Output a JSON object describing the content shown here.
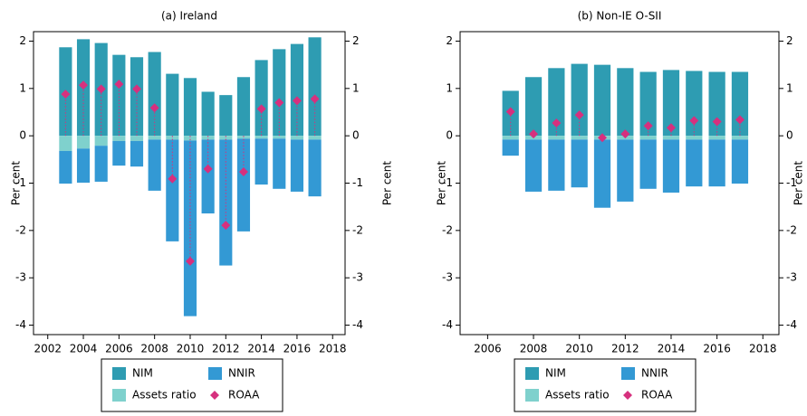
{
  "chart_data": [
    {
      "type": "bar",
      "title": "(a) Ireland",
      "ylabel": "Per cent",
      "y2label": "Per cent",
      "x": [
        2003,
        2004,
        2005,
        2006,
        2007,
        2008,
        2009,
        2010,
        2011,
        2012,
        2013,
        2014,
        2015,
        2016,
        2017
      ],
      "xlim": [
        2001.2,
        2018.7
      ],
      "xticks": [
        2002,
        2004,
        2006,
        2008,
        2010,
        2012,
        2014,
        2016,
        2018
      ],
      "ylim": [
        -4.2,
        2.2
      ],
      "yticks": [
        -4,
        -3,
        -2,
        -1,
        0,
        1,
        2
      ],
      "y2lim": [
        -4.2,
        2.2
      ],
      "y2ticks": [
        -4,
        -3,
        -2,
        -1,
        0,
        1,
        2
      ],
      "series": [
        {
          "name": "NIM",
          "color": "#2e9cb2",
          "values": [
            1.87,
            2.04,
            1.96,
            1.71,
            1.66,
            1.77,
            1.31,
            1.22,
            0.93,
            0.86,
            1.24,
            1.6,
            1.83,
            1.94,
            2.08
          ]
        },
        {
          "name": "Assets ratio",
          "color": "#7fd1cd",
          "values": [
            -0.32,
            -0.27,
            -0.21,
            -0.11,
            -0.11,
            -0.08,
            -0.08,
            -0.1,
            -0.08,
            -0.08,
            -0.06,
            -0.06,
            -0.06,
            -0.08,
            -0.08
          ]
        },
        {
          "name": "NNIR",
          "color": "#3399d4",
          "values": [
            -0.69,
            -0.72,
            -0.76,
            -0.52,
            -0.54,
            -1.08,
            -2.15,
            -3.71,
            -1.56,
            -2.66,
            -1.96,
            -0.97,
            -1.06,
            -1.1,
            -1.2
          ]
        }
      ],
      "markers": {
        "name": "ROAA",
        "color": "#d6307e",
        "values": [
          0.88,
          1.07,
          0.99,
          1.09,
          0.99,
          0.59,
          -0.91,
          -2.65,
          -0.7,
          -1.89,
          -0.76,
          0.57,
          0.7,
          0.74,
          0.78
        ]
      }
    },
    {
      "type": "bar",
      "title": "(b) Non-IE O-SII",
      "ylabel": "Per cent",
      "y2label": "Per cent",
      "x": [
        2007,
        2008,
        2009,
        2010,
        2011,
        2012,
        2013,
        2014,
        2015,
        2016,
        2017
      ],
      "xlim": [
        2004.8,
        2018.7
      ],
      "xticks": [
        2006,
        2008,
        2010,
        2012,
        2014,
        2016,
        2018
      ],
      "ylim": [
        -4.2,
        2.2
      ],
      "yticks": [
        -4,
        -3,
        -2,
        -1,
        0,
        1,
        2
      ],
      "y2lim": [
        -4.2,
        2.2
      ],
      "y2ticks": [
        -4,
        -3,
        -2,
        -1,
        0,
        1,
        2
      ],
      "series": [
        {
          "name": "NIM",
          "color": "#2e9cb2",
          "values": [
            0.95,
            1.24,
            1.43,
            1.52,
            1.5,
            1.43,
            1.35,
            1.39,
            1.37,
            1.35,
            1.35
          ]
        },
        {
          "name": "Assets ratio",
          "color": "#7fd1cd",
          "values": [
            -0.08,
            -0.08,
            -0.08,
            -0.08,
            -0.08,
            -0.08,
            -0.08,
            -0.08,
            -0.08,
            -0.08,
            -0.08
          ]
        },
        {
          "name": "NNIR",
          "color": "#3399d4",
          "values": [
            -0.34,
            -1.1,
            -1.08,
            -1.01,
            -1.44,
            -1.31,
            -1.04,
            -1.12,
            -0.99,
            -0.99,
            -0.93
          ]
        }
      ],
      "markers": {
        "name": "ROAA",
        "color": "#d6307e",
        "values": [
          0.51,
          0.04,
          0.27,
          0.44,
          -0.04,
          0.04,
          0.21,
          0.17,
          0.32,
          0.3,
          0.34
        ]
      }
    }
  ]
}
